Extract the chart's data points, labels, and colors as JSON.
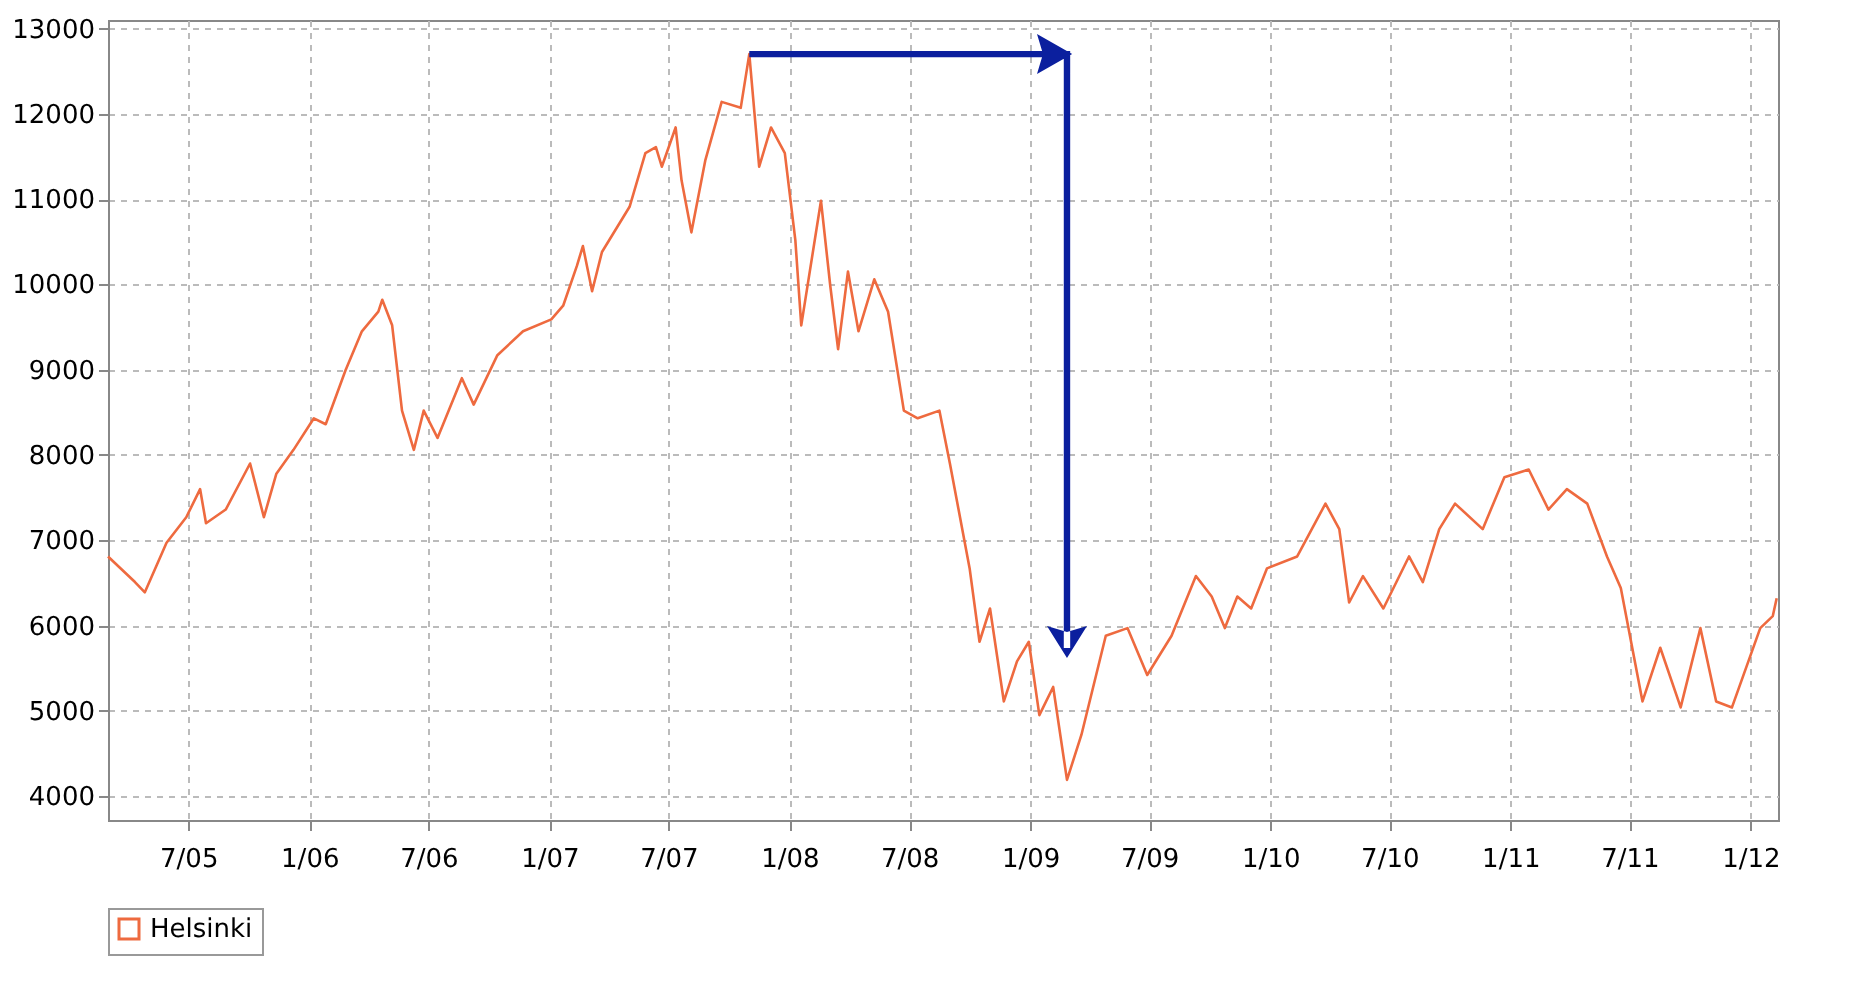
{
  "chart_data": {
    "type": "line",
    "x": [
      "2005-03-01",
      "2005-04-11",
      "2005-04-26",
      "2005-05-29",
      "2005-06-28",
      "2005-07-19",
      "2005-07-28",
      "2005-08-27",
      "2005-10-03",
      "2005-10-24",
      "2005-11-12",
      "2005-12-08",
      "2006-01-08",
      "2006-01-26",
      "2006-02-25",
      "2006-03-22",
      "2006-04-16",
      "2006-04-22",
      "2006-05-07",
      "2006-05-22",
      "2006-06-09",
      "2006-06-24",
      "2006-07-15",
      "2006-08-21",
      "2006-09-08",
      "2006-10-14",
      "2006-11-22",
      "2007-01-04",
      "2007-01-22",
      "2007-02-12",
      "2007-02-21",
      "2007-03-07",
      "2007-03-22",
      "2007-05-03",
      "2007-05-27",
      "2007-06-12",
      "2007-06-21",
      "2007-07-12",
      "2007-07-21",
      "2007-08-05",
      "2007-08-26",
      "2007-09-20",
      "2007-10-19",
      "2007-11-01",
      "2007-11-16",
      "2007-12-04",
      "2007-12-25",
      "2008-01-10",
      "2008-01-19",
      "2008-02-18",
      "2008-03-03",
      "2008-03-15",
      "2008-03-30",
      "2008-04-15",
      "2008-05-09",
      "2008-05-30",
      "2008-06-23",
      "2008-07-14",
      "2008-08-16",
      "2008-09-01",
      "2008-10-01",
      "2008-10-16",
      "2008-11-01",
      "2008-11-22",
      "2008-12-12",
      "2008-12-30",
      "2009-01-15",
      "2009-02-05",
      "2009-02-26",
      "2009-03-20",
      "2009-04-26",
      "2009-05-29",
      "2009-06-28",
      "2009-08-04",
      "2009-09-10",
      "2009-10-04",
      "2009-10-24",
      "2009-11-12",
      "2009-12-03",
      "2009-12-27",
      "2010-02-11",
      "2010-03-26",
      "2010-04-16",
      "2010-05-01",
      "2010-05-22",
      "2010-06-22",
      "2010-07-31",
      "2010-08-21",
      "2010-09-15",
      "2010-10-09",
      "2010-11-20",
      "2010-12-23",
      "2011-01-29",
      "2011-02-28",
      "2011-03-28",
      "2011-04-28",
      "2011-05-28",
      "2011-06-18",
      "2011-07-21",
      "2011-08-17",
      "2011-09-17",
      "2011-10-17",
      "2011-11-10",
      "2011-12-04",
      "2012-01-16",
      "2012-02-04",
      "2012-02-10"
    ],
    "series": [
      {
        "name": "Helsinki",
        "color": "#ee6a3f",
        "values": [
          6810,
          6510,
          6390,
          6970,
          7270,
          7600,
          7200,
          7360,
          7900,
          7270,
          7780,
          8060,
          8430,
          8360,
          8990,
          9450,
          9680,
          9820,
          9520,
          8520,
          8060,
          8520,
          8200,
          8900,
          8590,
          9170,
          9450,
          9590,
          9750,
          10220,
          10450,
          9920,
          10380,
          10910,
          11540,
          11610,
          11380,
          11840,
          11220,
          10610,
          11450,
          12140,
          12070,
          12700,
          11380,
          11840,
          11540,
          10520,
          9520,
          10980,
          9990,
          9240,
          10150,
          9450,
          10060,
          9680,
          8520,
          8430,
          8520,
          7900,
          6670,
          5810,
          6200,
          5110,
          5580,
          5810,
          4950,
          5280,
          4190,
          4720,
          5880,
          5970,
          5420,
          5880,
          6580,
          6340,
          5970,
          6340,
          6200,
          6670,
          6810,
          7430,
          7130,
          6270,
          6580,
          6200,
          6810,
          6510,
          7130,
          7430,
          7130,
          7740,
          7830,
          7360,
          7600,
          7430,
          6810,
          6440,
          5110,
          5740,
          5040,
          5970,
          5110,
          5040,
          5970,
          6110,
          6320
        ]
      }
    ],
    "xlim": [
      "2005-03-01",
      "2012-02-12"
    ],
    "xticks": [
      {
        "value": "2005-07-01",
        "label": "7/05"
      },
      {
        "value": "2006-01-01",
        "label": "1/06"
      },
      {
        "value": "2006-07-01",
        "label": "7/06"
      },
      {
        "value": "2007-01-01",
        "label": "1/07"
      },
      {
        "value": "2007-07-01",
        "label": "7/07"
      },
      {
        "value": "2008-01-01",
        "label": "1/08"
      },
      {
        "value": "2008-07-01",
        "label": "7/08"
      },
      {
        "value": "2009-01-01",
        "label": "1/09"
      },
      {
        "value": "2009-07-01",
        "label": "7/09"
      },
      {
        "value": "2010-01-01",
        "label": "1/10"
      },
      {
        "value": "2010-07-01",
        "label": "7/10"
      },
      {
        "value": "2011-01-01",
        "label": "1/11"
      },
      {
        "value": "2011-07-01",
        "label": "7/11"
      },
      {
        "value": "2012-01-01",
        "label": "1/12"
      }
    ],
    "ylim": [
      3720,
      13100
    ],
    "yticks": [
      4000,
      5000,
      6000,
      7000,
      8000,
      9000,
      10000,
      11000,
      12000,
      13000
    ],
    "grid": true,
    "legend": "bottom",
    "marker": "none",
    "line_style": "solid"
  }
}
